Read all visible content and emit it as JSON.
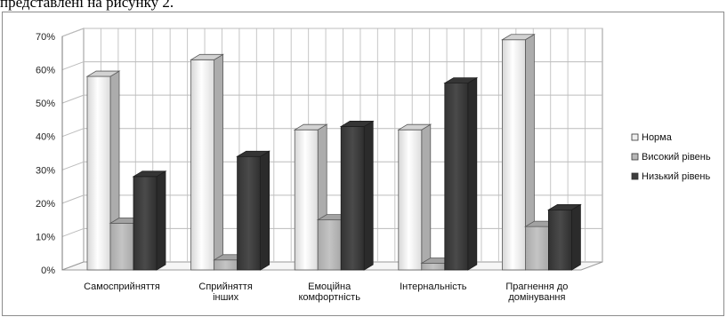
{
  "header": {
    "text": "представлені на рисунку 2."
  },
  "chart_data": {
    "type": "bar",
    "categories": [
      [
        "Самосприйняття"
      ],
      [
        "Сприйняття",
        "інших"
      ],
      [
        "Емоційна",
        "комфортність"
      ],
      [
        "Інтернальність"
      ],
      [
        "Прагнення до",
        "домінування"
      ]
    ],
    "series": [
      {
        "name": "Норма",
        "values": [
          58,
          63,
          42,
          42,
          69
        ],
        "color": "#efefef"
      },
      {
        "name": "Високий рівень",
        "values": [
          14,
          3,
          15,
          2,
          13
        ],
        "color": "#b8b8b8"
      },
      {
        "name": "Низький рівень",
        "values": [
          28,
          34,
          43,
          56,
          18
        ],
        "color": "#3e3e3e"
      }
    ],
    "yticks": [
      "0%",
      "10%",
      "20%",
      "30%",
      "40%",
      "50%",
      "60%",
      "70%"
    ],
    "ylim": [
      0,
      70
    ],
    "grid": true,
    "legend": "right"
  }
}
